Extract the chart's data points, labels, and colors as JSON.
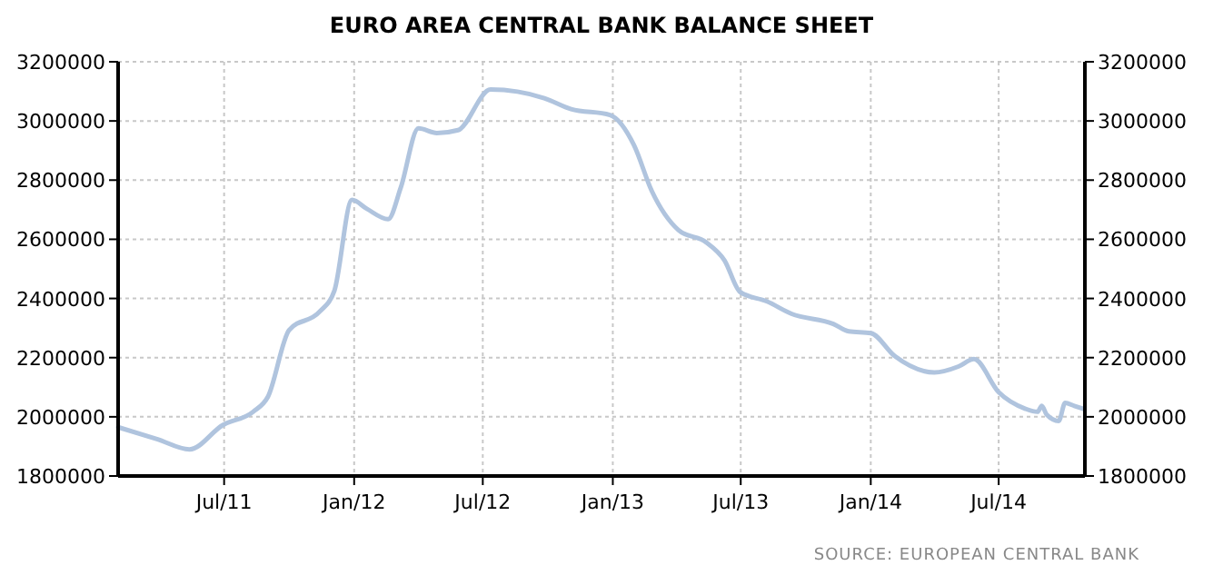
{
  "chart_data": {
    "type": "line",
    "title": "EURO AREA CENTRAL BANK BALANCE SHEET",
    "annotations": [
      "SOURCE: EUROPEAN CENTRAL BANK"
    ],
    "x": [
      "2011-02-01",
      "2011-03-28",
      "2011-05-13",
      "2011-06-29",
      "2011-08-11",
      "2011-09-01",
      "2011-10-01",
      "2011-11-13",
      "2011-12-04",
      "2011-12-29",
      "2012-01-19",
      "2012-02-18",
      "2012-03-07",
      "2012-04-01",
      "2012-04-27",
      "2012-05-27",
      "2012-07-12",
      "2012-09-26",
      "2012-11-03",
      "2012-12-28",
      "2013-01-31",
      "2013-02-25",
      "2013-04-04",
      "2013-05-13",
      "2013-06-08",
      "2013-06-30",
      "2013-08-07",
      "2013-09-11",
      "2013-11-09",
      "2013-12-01",
      "2014-01-01",
      "2014-02-04",
      "2014-04-01",
      "2014-05-05",
      "2014-05-27",
      "2014-07-01",
      "2014-08-08",
      "2014-08-25",
      "2014-08-31",
      "2014-09-07",
      "2014-09-24",
      "2014-10-03",
      "2014-10-16",
      "2014-10-29"
    ],
    "series": [
      {
        "color": "#b0c4de",
        "values": [
          1965000,
          1925000,
          1890000,
          1972000,
          2017000,
          2068000,
          2293000,
          2355000,
          2426000,
          2733000,
          2703000,
          2668000,
          2775000,
          2975000,
          2959000,
          2969000,
          3106000,
          3077000,
          3040000,
          3020000,
          2918000,
          2764000,
          2631000,
          2590000,
          2529000,
          2422000,
          2390000,
          2348000,
          2314000,
          2289000,
          2283000,
          2205000,
          2150000,
          2170000,
          2195000,
          2083000,
          2027000,
          2017000,
          2037000,
          2007000,
          1986000,
          2047000,
          2037000,
          2027000
        ]
      }
    ],
    "xlim": [
      "2011-02-01",
      "2014-10-31"
    ],
    "xticks": [
      {
        "value": "2011-07-01",
        "label": "Jul/11"
      },
      {
        "value": "2012-01-01",
        "label": "Jan/12"
      },
      {
        "value": "2012-07-01",
        "label": "Jul/12"
      },
      {
        "value": "2013-01-01",
        "label": "Jan/13"
      },
      {
        "value": "2013-07-01",
        "label": "Jul/13"
      },
      {
        "value": "2014-01-01",
        "label": "Jan/14"
      },
      {
        "value": "2014-07-01",
        "label": "Jul/14"
      }
    ],
    "ylim": [
      1800000,
      3200000
    ],
    "yticks": [
      1800000,
      2000000,
      2200000,
      2400000,
      2600000,
      2800000,
      3000000,
      3200000
    ],
    "y2lim": [
      1800000,
      3200000
    ],
    "y2ticks": [
      1800000,
      2000000,
      2200000,
      2400000,
      2600000,
      2800000,
      3000000,
      3200000
    ],
    "grid": true,
    "line_style": "solid",
    "marker": "none"
  }
}
